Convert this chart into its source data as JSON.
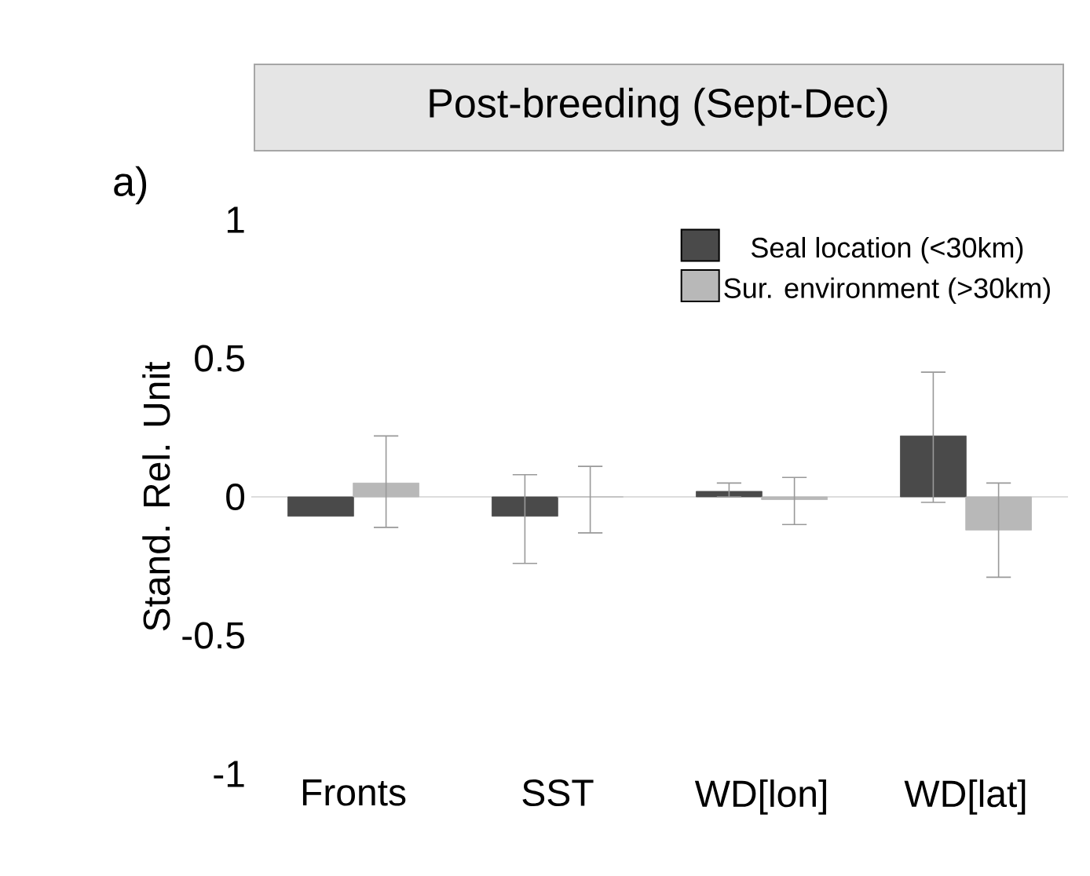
{
  "chart_data": {
    "type": "bar",
    "title": "Post-breeding (Sept-Dec)",
    "ylabel": "Stand. Rel. Unit",
    "annotations": [
      "a)"
    ],
    "categories": [
      "Fronts",
      "SST",
      "WD[lon]",
      "WD[lat]"
    ],
    "series": [
      {
        "name": "Seal location (<30km)",
        "color": "#4a4a4a",
        "values": [
          -0.07,
          -0.07,
          0.02,
          0.22
        ],
        "errors": [
          null,
          [
            -0.24,
            0.08
          ],
          [
            0.0,
            0.05
          ],
          [
            -0.02,
            0.45
          ]
        ]
      },
      {
        "name": "Sur. environment (>30km)",
        "color": "#b8b8b8",
        "values": [
          0.05,
          0.0,
          -0.01,
          -0.12
        ],
        "errors": [
          [
            -0.11,
            0.22
          ],
          [
            -0.13,
            0.11
          ],
          [
            -0.1,
            0.07
          ],
          [
            -0.29,
            0.05
          ]
        ]
      }
    ],
    "ylim": [
      -1,
      1
    ],
    "yticks": [
      -1,
      -0.5,
      0,
      0.5,
      1
    ],
    "ref_lines": [
      {
        "axis": "y",
        "value": 0,
        "color": "#dddddd"
      }
    ],
    "legend": "top right",
    "grid": false
  }
}
